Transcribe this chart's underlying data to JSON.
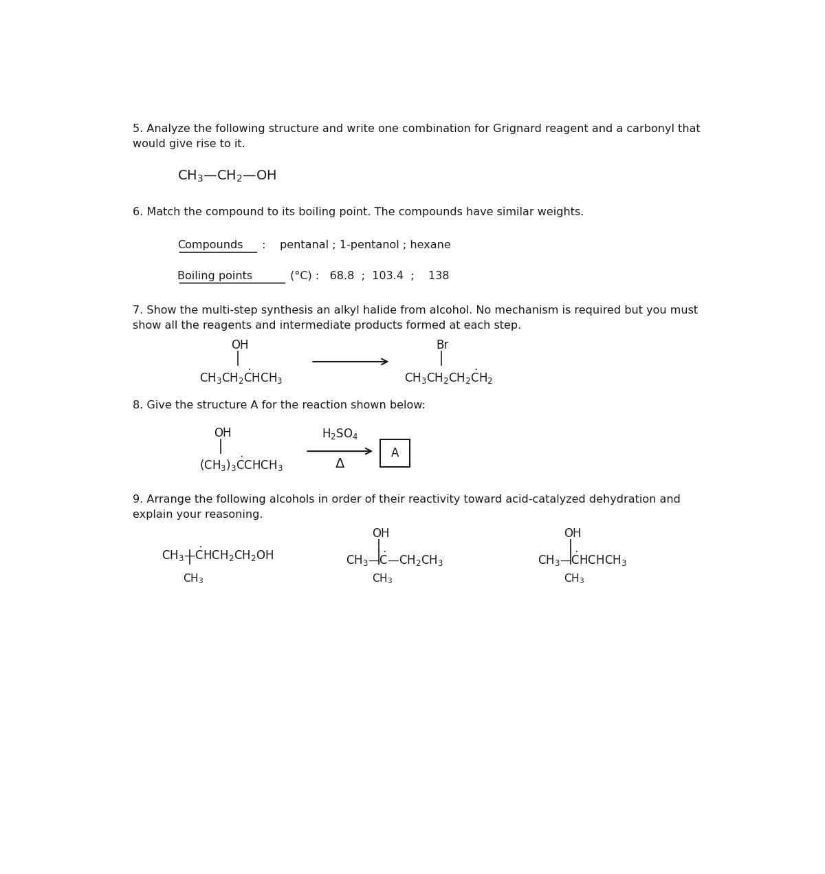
{
  "bg_color": "#ffffff",
  "text_color": "#1a1a1a",
  "q5_text": "5. Analyze the following structure and write one combination for Grignard reagent and a carbonyl that\nwould give rise to it.",
  "q6_text": "6. Match the compound to its boiling point. The compounds have similar weights.",
  "q7_text": "7. Show the multi-step synthesis an alkyl halide from alcohol. No mechanism is required but you must\nshow all the reagents and intermediate products formed at each step.",
  "q8_text": "8. Give the structure A for the reaction shown below:",
  "q9_text": "9. Arrange the following alcohols in order of their reactivity toward acid-catalyzed dehydration and\nexplain your reasoning."
}
